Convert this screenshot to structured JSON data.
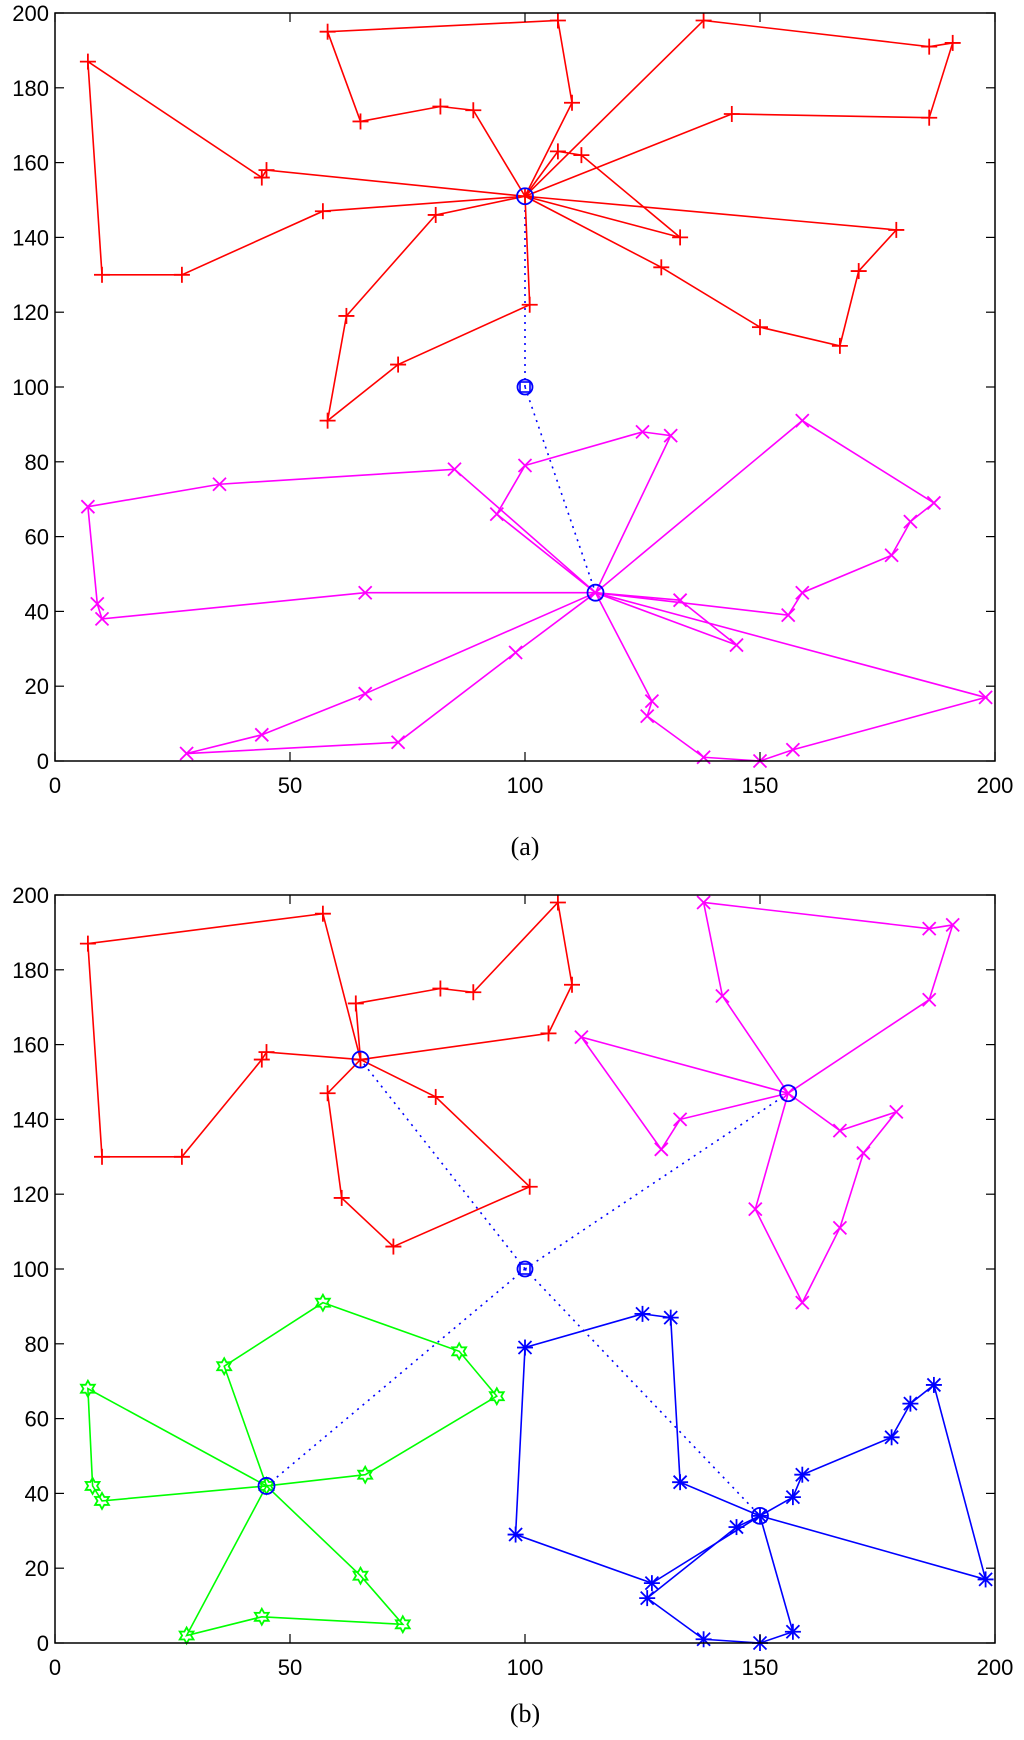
{
  "chart_data": [
    {
      "id": "a",
      "caption": "(a)",
      "type": "line",
      "xlim": [
        0,
        200
      ],
      "ylim": [
        0,
        200
      ],
      "xticks": [
        0,
        50,
        100,
        150,
        200
      ],
      "yticks": [
        0,
        20,
        40,
        60,
        80,
        100,
        120,
        140,
        160,
        180,
        200
      ],
      "grid": false,
      "base": {
        "x": 100,
        "y": 100,
        "color": "#0000ff",
        "marker": "square-circle"
      },
      "series": [
        {
          "color": "#ff0000",
          "marker": "plus",
          "head": {
            "x": 100,
            "y": 151
          },
          "lines": [
            [
              [
                100,
                151
              ],
              [
                107,
                163
              ],
              [
                112,
                162
              ],
              [
                133,
                140
              ],
              [
                100,
                151
              ]
            ],
            [
              [
                100,
                151
              ],
              [
                110,
                176
              ],
              [
                107,
                198
              ],
              [
                58,
                195
              ],
              [
                65,
                171
              ],
              [
                82,
                175
              ],
              [
                89,
                174
              ],
              [
                100,
                151
              ]
            ],
            [
              [
                100,
                151
              ],
              [
                138,
                198
              ],
              [
                186,
                191
              ],
              [
                191,
                192
              ],
              [
                186,
                172
              ],
              [
                144,
                173
              ],
              [
                100,
                151
              ]
            ],
            [
              [
                100,
                151
              ],
              [
                179,
                142
              ],
              [
                171,
                131
              ],
              [
                167,
                111
              ],
              [
                150,
                116
              ],
              [
                129,
                132
              ],
              [
                100,
                151
              ]
            ],
            [
              [
                100,
                151
              ],
              [
                45,
                158
              ],
              [
                44,
                156
              ],
              [
                7,
                187
              ],
              [
                10,
                130
              ],
              [
                27,
                130
              ],
              [
                57,
                147
              ],
              [
                100,
                151
              ]
            ],
            [
              [
                100,
                151
              ],
              [
                81,
                146
              ],
              [
                62,
                119
              ],
              [
                58,
                91
              ],
              [
                73,
                106
              ],
              [
                101,
                122
              ],
              [
                100,
                151
              ]
            ]
          ]
        },
        {
          "color": "#ff00ff",
          "marker": "x",
          "head": {
            "x": 115,
            "y": 45
          },
          "lines": [
            [
              [
                115,
                45
              ],
              [
                94,
                66
              ],
              [
                100,
                79
              ],
              [
                125,
                88
              ],
              [
                131,
                87
              ],
              [
                115,
                45
              ]
            ],
            [
              [
                115,
                45
              ],
              [
                85,
                78
              ],
              [
                35,
                74
              ],
              [
                7,
                68
              ],
              [
                9,
                42
              ],
              [
                10,
                38
              ],
              [
                66,
                45
              ],
              [
                115,
                45
              ]
            ],
            [
              [
                115,
                45
              ],
              [
                127,
                16
              ],
              [
                126,
                12
              ],
              [
                138,
                1
              ],
              [
                150,
                0
              ],
              [
                157,
                3
              ],
              [
                198,
                17
              ],
              [
                115,
                45
              ]
            ],
            [
              [
                115,
                45
              ],
              [
                133,
                43
              ],
              [
                145,
                31
              ],
              [
                115,
                45
              ]
            ],
            [
              [
                115,
                45
              ],
              [
                98,
                29
              ],
              [
                73,
                5
              ],
              [
                28,
                2
              ],
              [
                44,
                7
              ],
              [
                66,
                18
              ],
              [
                115,
                45
              ]
            ],
            [
              [
                115,
                45
              ],
              [
                156,
                39
              ],
              [
                159,
                45
              ],
              [
                178,
                55
              ],
              [
                182,
                64
              ],
              [
                187,
                69
              ],
              [
                159,
                91
              ],
              [
                115,
                45
              ]
            ]
          ]
        }
      ],
      "dotted_links": [
        [
          [
            100,
            100
          ],
          [
            100,
            151
          ]
        ],
        [
          [
            100,
            100
          ],
          [
            115,
            45
          ]
        ]
      ]
    },
    {
      "id": "b",
      "caption": "(b)",
      "type": "line",
      "xlim": [
        0,
        200
      ],
      "ylim": [
        0,
        200
      ],
      "xticks": [
        0,
        50,
        100,
        150,
        200
      ],
      "yticks": [
        0,
        20,
        40,
        60,
        80,
        100,
        120,
        140,
        160,
        180,
        200
      ],
      "grid": false,
      "base": {
        "x": 100,
        "y": 100,
        "color": "#0000ff",
        "marker": "square-circle"
      },
      "series": [
        {
          "color": "#ff0000",
          "marker": "plus",
          "head": {
            "x": 65,
            "y": 156
          },
          "lines": [
            [
              [
                65,
                156
              ],
              [
                57,
                195
              ],
              [
                7,
                187
              ],
              [
                10,
                130
              ],
              [
                27,
                130
              ],
              [
                44,
                156
              ],
              [
                45,
                158
              ],
              [
                65,
                156
              ]
            ],
            [
              [
                65,
                156
              ],
              [
                64,
                171
              ],
              [
                82,
                175
              ],
              [
                89,
                174
              ],
              [
                107,
                198
              ],
              [
                110,
                176
              ],
              [
                105,
                163
              ],
              [
                65,
                156
              ]
            ],
            [
              [
                65,
                156
              ],
              [
                81,
                146
              ],
              [
                101,
                122
              ],
              [
                72,
                106
              ],
              [
                61,
                119
              ],
              [
                58,
                147
              ],
              [
                65,
                156
              ]
            ]
          ]
        },
        {
          "color": "#ff00ff",
          "marker": "x",
          "head": {
            "x": 156,
            "y": 147
          },
          "lines": [
            [
              [
                156,
                147
              ],
              [
                142,
                173
              ],
              [
                138,
                198
              ],
              [
                186,
                191
              ],
              [
                191,
                192
              ],
              [
                186,
                172
              ],
              [
                156,
                147
              ]
            ],
            [
              [
                156,
                147
              ],
              [
                167,
                137
              ],
              [
                179,
                142
              ],
              [
                172,
                131
              ],
              [
                167,
                111
              ],
              [
                159,
                91
              ],
              [
                149,
                116
              ],
              [
                156,
                147
              ]
            ],
            [
              [
                156,
                147
              ],
              [
                133,
                140
              ],
              [
                129,
                132
              ],
              [
                112,
                162
              ],
              [
                156,
                147
              ]
            ]
          ]
        },
        {
          "color": "#00ff00",
          "marker": "star",
          "head": {
            "x": 45,
            "y": 42
          },
          "lines": [
            [
              [
                45,
                42
              ],
              [
                36,
                74
              ],
              [
                57,
                91
              ],
              [
                86,
                78
              ],
              [
                94,
                66
              ],
              [
                66,
                45
              ],
              [
                45,
                42
              ]
            ],
            [
              [
                45,
                42
              ],
              [
                7,
                68
              ],
              [
                8,
                42
              ],
              [
                10,
                38
              ],
              [
                45,
                42
              ]
            ],
            [
              [
                45,
                42
              ],
              [
                65,
                18
              ],
              [
                74,
                5
              ],
              [
                44,
                7
              ],
              [
                28,
                2
              ],
              [
                45,
                42
              ]
            ]
          ]
        },
        {
          "color": "#0000ff",
          "marker": "asterisk",
          "head": {
            "x": 150,
            "y": 34
          },
          "lines": [
            [
              [
                150,
                34
              ],
              [
                157,
                39
              ],
              [
                159,
                45
              ],
              [
                178,
                55
              ],
              [
                182,
                64
              ],
              [
                187,
                69
              ],
              [
                198,
                17
              ],
              [
                150,
                34
              ]
            ],
            [
              [
                150,
                34
              ],
              [
                133,
                43
              ],
              [
                131,
                87
              ],
              [
                125,
                88
              ],
              [
                100,
                79
              ],
              [
                98,
                29
              ],
              [
                127,
                16
              ],
              [
                150,
                34
              ]
            ],
            [
              [
                150,
                34
              ],
              [
                145,
                31
              ],
              [
                126,
                12
              ],
              [
                138,
                1
              ],
              [
                150,
                0
              ],
              [
                157,
                3
              ],
              [
                150,
                34
              ]
            ]
          ]
        }
      ],
      "dotted_links": [
        [
          [
            100,
            100
          ],
          [
            65,
            156
          ]
        ],
        [
          [
            100,
            100
          ],
          [
            156,
            147
          ]
        ],
        [
          [
            100,
            100
          ],
          [
            45,
            42
          ]
        ],
        [
          [
            100,
            100
          ],
          [
            150,
            34
          ]
        ]
      ]
    }
  ]
}
